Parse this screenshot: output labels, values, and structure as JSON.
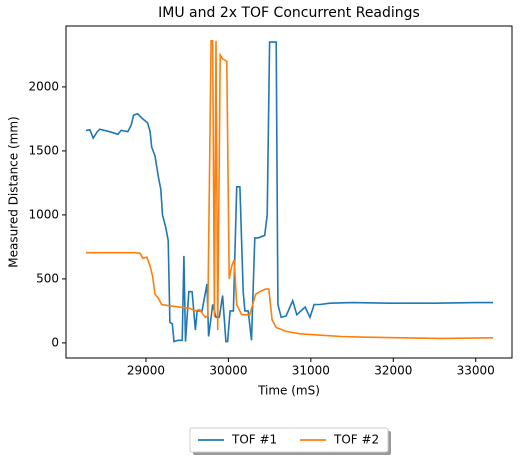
{
  "chart_data": {
    "type": "line",
    "title": "IMU and 2x TOF Concurrent Readings",
    "x_label": "Time (mS)",
    "y_label": "Measured Distance (mm)",
    "xlim": [
      28030,
      33440
    ],
    "ylim": [
      -118,
      2476
    ],
    "xticks": [
      29000,
      30000,
      31000,
      32000,
      33000
    ],
    "yticks": [
      0,
      500,
      1000,
      1500,
      2000
    ],
    "legend": "bottom",
    "series": [
      {
        "name": "TOF #1",
        "color": "#1f77b4",
        "x": [
          28273,
          28320,
          28360,
          28410,
          28440,
          28560,
          28660,
          28700,
          28780,
          28820,
          28850,
          28900,
          28960,
          29020,
          29050,
          29070,
          29110,
          29150,
          29180,
          29200,
          29240,
          29270,
          29290,
          29320,
          29340,
          29390,
          29440,
          29460,
          29480,
          29520,
          29560,
          29600,
          29620,
          29680,
          29740,
          29760,
          29790,
          29810,
          29850,
          29890,
          29930,
          29970,
          29990,
          30020,
          30060,
          30100,
          30140,
          30180,
          30200,
          30240,
          30280,
          30320,
          30360,
          30440,
          30470,
          30500,
          30580,
          30600,
          30640,
          30700,
          30780,
          30830,
          30930,
          30990,
          31040,
          31110,
          31230,
          31500,
          32000,
          32500,
          33000,
          33210
        ],
        "values": [
          1660,
          1665,
          1600,
          1650,
          1670,
          1650,
          1630,
          1660,
          1650,
          1700,
          1780,
          1790,
          1750,
          1720,
          1650,
          1530,
          1460,
          1300,
          1200,
          1000,
          900,
          800,
          160,
          150,
          10,
          20,
          20,
          680,
          10,
          400,
          400,
          100,
          250,
          250,
          460,
          50,
          200,
          300,
          200,
          200,
          370,
          10,
          10,
          250,
          250,
          1220,
          1220,
          400,
          250,
          250,
          20,
          820,
          820,
          840,
          1000,
          2350,
          2350,
          300,
          200,
          210,
          330,
          220,
          280,
          200,
          300,
          300,
          310,
          315,
          310,
          310,
          315,
          315
        ]
      },
      {
        "name": "TOF #2",
        "color": "#ff7f0e",
        "x": [
          28273,
          28870,
          28930,
          28960,
          29010,
          29050,
          29080,
          29110,
          29150,
          29190,
          29290,
          29410,
          29530,
          29590,
          29650,
          29720,
          29750,
          29790,
          29810,
          29830,
          29850,
          29870,
          29900,
          29930,
          29980,
          30010,
          30040,
          30070,
          30100,
          30160,
          30260,
          30330,
          30380,
          30450,
          30490,
          30530,
          30580,
          30700,
          30880,
          31120,
          31370,
          31610,
          32100,
          32580,
          33210
        ],
        "values": [
          705,
          705,
          700,
          660,
          670,
          600,
          520,
          380,
          350,
          300,
          290,
          280,
          270,
          250,
          260,
          200,
          210,
          2360,
          2360,
          200,
          2360,
          100,
          2250,
          2220,
          2200,
          500,
          600,
          650,
          300,
          220,
          220,
          380,
          400,
          420,
          420,
          180,
          120,
          90,
          70,
          60,
          50,
          45,
          40,
          35,
          40
        ]
      }
    ]
  }
}
